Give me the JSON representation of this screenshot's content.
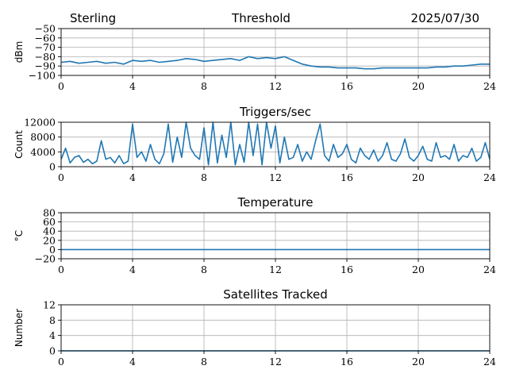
{
  "header": {
    "station": "Sterling",
    "date": "2025/07/30"
  },
  "colors": {
    "series": "#1f77b4",
    "grid": "#b0b0b0"
  },
  "chart_data": [
    {
      "type": "line",
      "title": "Threshold",
      "ylabel": "dBm",
      "xlim": [
        0,
        24
      ],
      "ylim": [
        -100,
        -50
      ],
      "xticks": [
        0,
        4,
        8,
        12,
        16,
        20,
        24
      ],
      "yticks": [
        -100,
        -90,
        -80,
        -70,
        -60,
        -50
      ],
      "ytick_labels": [
        "−100",
        "−90",
        "−80",
        "−70",
        "−60",
        "−50"
      ],
      "grid": true,
      "series": [
        {
          "x": [
            0,
            0.5,
            1,
            1.5,
            2,
            2.5,
            3,
            3.5,
            4,
            4.5,
            5,
            5.5,
            6,
            6.5,
            7,
            7.5,
            8,
            8.5,
            9,
            9.5,
            10,
            10.5,
            11,
            11.5,
            12,
            12.5,
            13,
            13.5,
            14,
            14.5,
            15,
            15.5,
            16,
            16.5,
            17,
            17.5,
            18,
            18.5,
            19,
            19.5,
            20,
            20.5,
            21,
            21.5,
            22,
            22.5,
            23,
            23.5,
            24
          ],
          "y": [
            -86,
            -85,
            -87,
            -86,
            -85,
            -87,
            -86,
            -88,
            -84,
            -85,
            -84,
            -86,
            -85,
            -84,
            -82,
            -83,
            -85,
            -84,
            -83,
            -82,
            -84,
            -80,
            -82,
            -81,
            -82,
            -80,
            -84,
            -88,
            -90,
            -91,
            -91,
            -92,
            -92,
            -92,
            -93,
            -93,
            -92,
            -92,
            -92,
            -92,
            -92,
            -92,
            -91,
            -91,
            -90,
            -90,
            -89,
            -88,
            -88
          ]
        }
      ]
    },
    {
      "type": "line",
      "title": "Triggers/sec",
      "ylabel": "Count",
      "xlim": [
        0,
        24
      ],
      "ylim": [
        0,
        12000
      ],
      "xticks": [
        0,
        4,
        8,
        12,
        16,
        20,
        24
      ],
      "yticks": [
        0,
        4000,
        8000,
        12000
      ],
      "ytick_labels": [
        "0",
        "4000",
        "8000",
        "12000"
      ],
      "grid": true,
      "series": [
        {
          "x": [
            0,
            0.25,
            0.5,
            0.75,
            1,
            1.25,
            1.5,
            1.75,
            2,
            2.25,
            2.5,
            2.75,
            3,
            3.25,
            3.5,
            3.75,
            4,
            4.25,
            4.5,
            4.75,
            5,
            5.25,
            5.5,
            5.75,
            6,
            6.25,
            6.5,
            6.75,
            7,
            7.25,
            7.5,
            7.75,
            8,
            8.25,
            8.5,
            8.75,
            9,
            9.25,
            9.5,
            9.75,
            10,
            10.25,
            10.5,
            10.75,
            11,
            11.25,
            11.5,
            11.75,
            12,
            12.25,
            12.5,
            12.75,
            13,
            13.25,
            13.5,
            13.75,
            14,
            14.25,
            14.5,
            14.75,
            15,
            15.25,
            15.5,
            15.75,
            16,
            16.25,
            16.5,
            16.75,
            17,
            17.25,
            17.5,
            17.75,
            18,
            18.25,
            18.5,
            18.75,
            19,
            19.25,
            19.5,
            19.75,
            20,
            20.25,
            20.5,
            20.75,
            21,
            21.25,
            21.5,
            21.75,
            22,
            22.25,
            22.5,
            22.75,
            23,
            23.25,
            23.5,
            23.75,
            24
          ],
          "y": [
            2000,
            5000,
            1000,
            2500,
            3000,
            1200,
            2000,
            800,
            1500,
            7000,
            2000,
            2500,
            1000,
            3000,
            800,
            1500,
            11500,
            2500,
            4000,
            1500,
            6000,
            2000,
            800,
            3500,
            11500,
            1200,
            8000,
            2500,
            12000,
            5000,
            3000,
            2000,
            10500,
            500,
            12000,
            1000,
            8500,
            2500,
            12000,
            500,
            6000,
            1200,
            12000,
            3000,
            11500,
            500,
            12000,
            5000,
            11000,
            1000,
            8000,
            2000,
            2500,
            6000,
            1500,
            4000,
            2000,
            7000,
            11500,
            3000,
            1500,
            6000,
            2500,
            3500,
            6000,
            2000,
            1000,
            5000,
            3000,
            2000,
            4500,
            1500,
            3000,
            6500,
            2000,
            1500,
            3500,
            7500,
            2500,
            1500,
            3000,
            5500,
            2000,
            1500,
            6500,
            2500,
            3000,
            2000,
            6000,
            1500,
            3000,
            2500,
            5000,
            1500,
            2500,
            6500,
            2000
          ]
        }
      ]
    },
    {
      "type": "line",
      "title": "Temperature",
      "ylabel": "°C",
      "xlim": [
        0,
        24
      ],
      "ylim": [
        -20,
        80
      ],
      "xticks": [
        0,
        4,
        8,
        12,
        16,
        20,
        24
      ],
      "yticks": [
        -20,
        0,
        20,
        40,
        60,
        80
      ],
      "ytick_labels": [
        "−20",
        "0",
        "20",
        "40",
        "60",
        "80"
      ],
      "grid": true,
      "series": [
        {
          "x": [
            0,
            24
          ],
          "y": [
            0,
            0
          ]
        }
      ]
    },
    {
      "type": "line",
      "title": "Satellites Tracked",
      "ylabel": "Number",
      "xlim": [
        0,
        24
      ],
      "ylim": [
        0,
        12
      ],
      "xticks": [
        0,
        4,
        8,
        12,
        16,
        20,
        24
      ],
      "yticks": [
        0,
        4,
        8,
        12
      ],
      "ytick_labels": [
        "0",
        "4",
        "8",
        "12"
      ],
      "grid": true,
      "series": [
        {
          "x": [
            0,
            24
          ],
          "y": [
            0,
            0
          ]
        }
      ]
    }
  ]
}
